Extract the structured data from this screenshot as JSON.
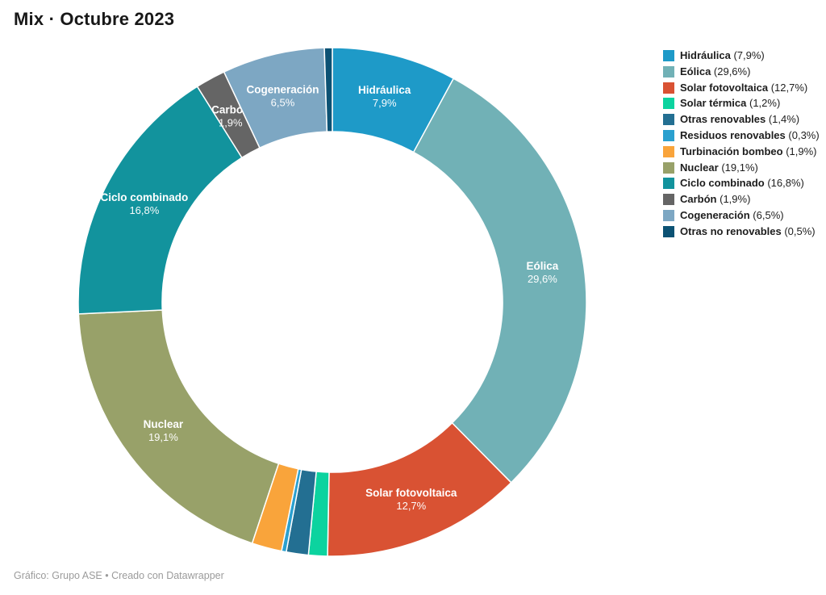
{
  "header": {
    "title": "Mix · Octubre 2023"
  },
  "footer": {
    "credit": "Gráfico: Grupo ASE • Creado con Datawrapper"
  },
  "chart_data": {
    "type": "pie",
    "subtype": "donut",
    "title": "Mix · Octubre 2023",
    "unit": "%",
    "start": "top",
    "direction": "clockwise",
    "legend_position": "right",
    "inner_radius_ratio": 0.67,
    "categories": [
      "Hidráulica",
      "Eólica",
      "Solar fotovoltaica",
      "Solar térmica",
      "Otras renovables",
      "Residuos renovables",
      "Turbinación bombeo",
      "Nuclear",
      "Ciclo combinado",
      "Carbón",
      "Cogeneración",
      "Otras no renovables"
    ],
    "values": [
      7.9,
      29.6,
      12.7,
      1.2,
      1.4,
      0.3,
      1.9,
      19.1,
      16.8,
      1.9,
      6.5,
      0.5
    ],
    "display_values": [
      "7,9%",
      "29,6%",
      "12,7%",
      "1,2%",
      "1,4%",
      "0,3%",
      "1,9%",
      "19,1%",
      "16,8%",
      "1,9%",
      "6,5%",
      "0,5%"
    ],
    "colors": [
      "#1e9ac8",
      "#71b1b6",
      "#d95233",
      "#0cd39f",
      "#236f92",
      "#2aa0cf",
      "#f9a43b",
      "#98a169",
      "#12939d",
      "#656565",
      "#7da7c3",
      "#0c5274"
    ],
    "labeled_slices": [
      true,
      true,
      true,
      false,
      false,
      false,
      false,
      true,
      true,
      true,
      true,
      false
    ]
  }
}
